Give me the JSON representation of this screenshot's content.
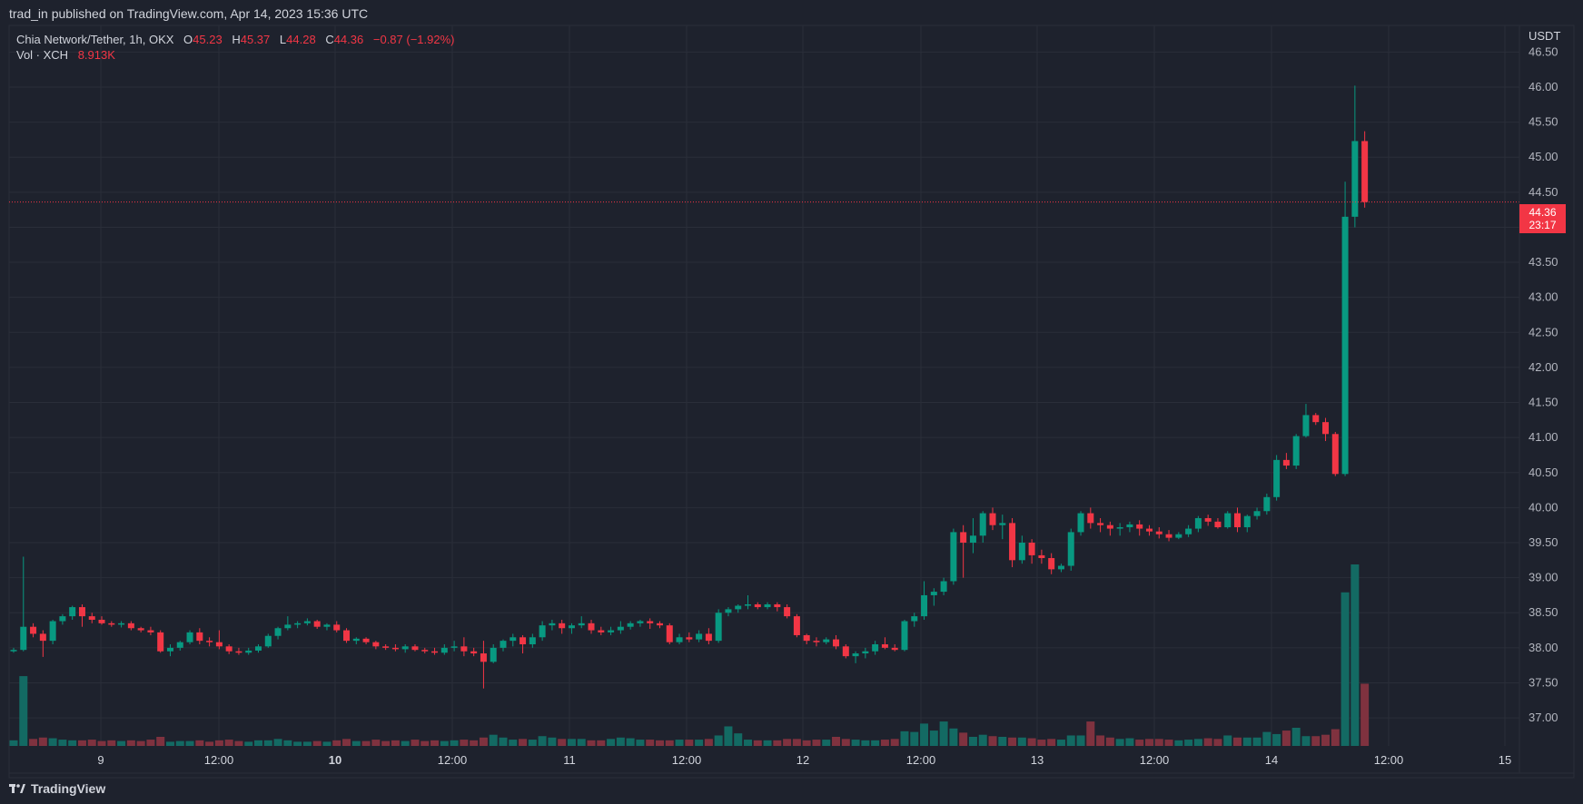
{
  "header": {
    "published_text": "trad_in published on TradingView.com, Apr 14, 2023 15:36 UTC"
  },
  "legend": {
    "symbol": "Chia Network/Tether, 1h, OKX",
    "open_label": "O",
    "open_value": "45.23",
    "high_label": "H",
    "high_value": "45.37",
    "low_label": "L",
    "low_value": "44.28",
    "close_label": "C",
    "close_value": "44.36",
    "change": "−0.87 (−1.92%)",
    "volume_label": "Vol · XCH",
    "volume_value": "8.913K"
  },
  "price_tag": {
    "price": "44.36",
    "countdown": "23:17"
  },
  "footer": {
    "logo_text": "TradingView"
  },
  "colors": {
    "background": "#1e222d",
    "grid": "#2a2e39",
    "up": "#089981",
    "down": "#f23645",
    "up_volume": "#136a63",
    "down_volume": "#7f323f"
  },
  "chart_data": {
    "type": "candlestick",
    "currency": "USDT",
    "y_ticks": [
      "46.50",
      "46.00",
      "45.50",
      "45.00",
      "44.50",
      "44.00",
      "43.50",
      "43.00",
      "42.50",
      "42.00",
      "41.50",
      "41.00",
      "40.50",
      "40.00",
      "39.50",
      "39.00",
      "38.50",
      "38.00",
      "37.50",
      "37.00"
    ],
    "ylim": [
      36.6,
      46.88
    ],
    "x_labels": [
      {
        "label": "9",
        "bold": false
      },
      {
        "label": "12:00",
        "bold": false
      },
      {
        "label": "10",
        "bold": true
      },
      {
        "label": "12:00",
        "bold": false
      },
      {
        "label": "11",
        "bold": false
      },
      {
        "label": "12:00",
        "bold": false
      },
      {
        "label": "12",
        "bold": false
      },
      {
        "label": "12:00",
        "bold": false
      },
      {
        "label": "13",
        "bold": false
      },
      {
        "label": "12:00",
        "bold": false
      },
      {
        "label": "14",
        "bold": false
      },
      {
        "label": "12:00",
        "bold": false
      },
      {
        "label": "15",
        "bold": false
      }
    ],
    "candles": [
      [
        37.95,
        38.0,
        37.93,
        37.97,
        0.8
      ],
      [
        37.97,
        39.3,
        37.95,
        38.3,
        10.0
      ],
      [
        38.3,
        38.35,
        38.15,
        38.2,
        1.0
      ],
      [
        38.2,
        38.25,
        37.87,
        38.1,
        1.2
      ],
      [
        38.1,
        38.4,
        38.05,
        38.38,
        1.1
      ],
      [
        38.38,
        38.48,
        38.33,
        38.45,
        0.9
      ],
      [
        38.45,
        38.6,
        38.4,
        38.58,
        0.8
      ],
      [
        38.58,
        38.62,
        38.3,
        38.45,
        0.8
      ],
      [
        38.45,
        38.5,
        38.35,
        38.4,
        0.9
      ],
      [
        38.4,
        38.45,
        38.33,
        38.35,
        0.7
      ],
      [
        38.35,
        38.38,
        38.3,
        38.33,
        0.8
      ],
      [
        38.33,
        38.38,
        38.29,
        38.35,
        0.7
      ],
      [
        38.35,
        38.38,
        38.25,
        38.28,
        0.8
      ],
      [
        38.28,
        38.3,
        38.22,
        38.25,
        0.7
      ],
      [
        38.25,
        38.3,
        38.18,
        38.22,
        0.9
      ],
      [
        38.22,
        38.25,
        37.93,
        37.95,
        1.3
      ],
      [
        37.95,
        38.05,
        37.88,
        38.0,
        0.6
      ],
      [
        38.0,
        38.1,
        37.96,
        38.08,
        0.7
      ],
      [
        38.08,
        38.25,
        38.05,
        38.22,
        0.7
      ],
      [
        38.22,
        38.28,
        38.05,
        38.1,
        0.8
      ],
      [
        38.1,
        38.15,
        38.02,
        38.08,
        0.6
      ],
      [
        38.08,
        38.25,
        37.98,
        38.02,
        0.8
      ],
      [
        38.02,
        38.05,
        37.91,
        37.95,
        0.9
      ],
      [
        37.95,
        38.0,
        37.9,
        37.93,
        0.7
      ],
      [
        37.93,
        38.0,
        37.9,
        37.96,
        0.6
      ],
      [
        37.96,
        38.05,
        37.93,
        38.02,
        0.8
      ],
      [
        38.02,
        38.2,
        38.0,
        38.17,
        0.8
      ],
      [
        38.17,
        38.3,
        38.12,
        38.28,
        1.0
      ],
      [
        38.28,
        38.45,
        38.25,
        38.33,
        0.8
      ],
      [
        38.33,
        38.38,
        38.28,
        38.35,
        0.6
      ],
      [
        38.35,
        38.42,
        38.32,
        38.38,
        0.6
      ],
      [
        38.38,
        38.4,
        38.27,
        38.3,
        0.7
      ],
      [
        38.3,
        38.35,
        38.25,
        38.33,
        0.6
      ],
      [
        38.33,
        38.38,
        38.22,
        38.25,
        0.8
      ],
      [
        38.25,
        38.28,
        38.07,
        38.1,
        1.0
      ],
      [
        38.1,
        38.15,
        38.05,
        38.13,
        0.7
      ],
      [
        38.13,
        38.15,
        38.05,
        38.08,
        0.7
      ],
      [
        38.08,
        38.1,
        37.98,
        38.02,
        0.9
      ],
      [
        38.02,
        38.05,
        37.97,
        38.0,
        0.7
      ],
      [
        38.0,
        38.05,
        37.95,
        37.98,
        0.8
      ],
      [
        37.98,
        38.05,
        37.93,
        38.02,
        0.7
      ],
      [
        38.02,
        38.05,
        37.95,
        37.97,
        0.9
      ],
      [
        37.97,
        38.0,
        37.92,
        37.95,
        0.7
      ],
      [
        37.95,
        38.0,
        37.9,
        37.93,
        0.8
      ],
      [
        37.93,
        38.05,
        37.9,
        38.0,
        0.7
      ],
      [
        38.0,
        38.1,
        37.95,
        38.02,
        0.8
      ],
      [
        38.02,
        38.15,
        37.88,
        37.95,
        0.9
      ],
      [
        37.95,
        38.0,
        37.88,
        37.92,
        0.8
      ],
      [
        37.92,
        38.1,
        37.42,
        37.8,
        1.2
      ],
      [
        37.8,
        38.05,
        37.78,
        38.0,
        1.6
      ],
      [
        38.0,
        38.12,
        37.95,
        38.1,
        1.2
      ],
      [
        38.1,
        38.2,
        38.02,
        38.15,
        0.9
      ],
      [
        38.15,
        38.18,
        37.92,
        38.05,
        1.0
      ],
      [
        38.05,
        38.2,
        38.0,
        38.15,
        0.9
      ],
      [
        38.15,
        38.38,
        38.1,
        38.32,
        1.4
      ],
      [
        38.32,
        38.4,
        38.25,
        38.35,
        1.2
      ],
      [
        38.35,
        38.4,
        38.2,
        38.28,
        1.0
      ],
      [
        38.28,
        38.35,
        38.2,
        38.32,
        1.0
      ],
      [
        38.32,
        38.45,
        38.28,
        38.35,
        1.0
      ],
      [
        38.35,
        38.4,
        38.2,
        38.25,
        0.8
      ],
      [
        38.25,
        38.3,
        38.18,
        38.22,
        0.8
      ],
      [
        38.22,
        38.3,
        38.18,
        38.25,
        1.0
      ],
      [
        38.25,
        38.38,
        38.2,
        38.3,
        1.2
      ],
      [
        38.3,
        38.38,
        38.26,
        38.35,
        1.1
      ],
      [
        38.35,
        38.4,
        38.3,
        38.38,
        0.9
      ],
      [
        38.38,
        38.42,
        38.27,
        38.35,
        0.9
      ],
      [
        38.35,
        38.38,
        38.28,
        38.32,
        0.8
      ],
      [
        38.32,
        38.35,
        38.05,
        38.08,
        0.8
      ],
      [
        38.08,
        38.2,
        38.05,
        38.15,
        0.9
      ],
      [
        38.15,
        38.22,
        38.08,
        38.12,
        0.9
      ],
      [
        38.12,
        38.25,
        38.08,
        38.2,
        0.9
      ],
      [
        38.2,
        38.28,
        38.05,
        38.1,
        1.0
      ],
      [
        38.1,
        38.55,
        38.07,
        38.5,
        1.5
      ],
      [
        38.5,
        38.58,
        38.45,
        38.55,
        2.8
      ],
      [
        38.55,
        38.62,
        38.5,
        38.6,
        1.8
      ],
      [
        38.6,
        38.75,
        38.55,
        38.62,
        0.9
      ],
      [
        38.62,
        38.65,
        38.55,
        38.58,
        0.8
      ],
      [
        38.58,
        38.65,
        38.55,
        38.62,
        0.8
      ],
      [
        38.62,
        38.65,
        38.52,
        38.58,
        0.8
      ],
      [
        38.58,
        38.62,
        38.42,
        38.45,
        1.0
      ],
      [
        38.45,
        38.48,
        38.15,
        38.18,
        1.0
      ],
      [
        38.18,
        38.2,
        38.05,
        38.1,
        0.8
      ],
      [
        38.1,
        38.15,
        38.02,
        38.08,
        0.9
      ],
      [
        38.08,
        38.15,
        38.05,
        38.12,
        0.9
      ],
      [
        38.12,
        38.18,
        37.98,
        38.02,
        1.3
      ],
      [
        38.02,
        38.05,
        37.85,
        37.88,
        1.0
      ],
      [
        37.88,
        37.95,
        37.78,
        37.92,
        0.9
      ],
      [
        37.92,
        38.0,
        37.85,
        37.95,
        0.8
      ],
      [
        37.95,
        38.1,
        37.9,
        38.05,
        0.8
      ],
      [
        38.05,
        38.15,
        37.98,
        38.0,
        0.9
      ],
      [
        38.0,
        38.05,
        37.95,
        37.97,
        1.0
      ],
      [
        37.97,
        38.4,
        37.95,
        38.38,
        2.1
      ],
      [
        38.38,
        38.5,
        38.3,
        38.45,
        2.0
      ],
      [
        38.45,
        38.95,
        38.4,
        38.75,
        3.2
      ],
      [
        38.75,
        38.85,
        38.6,
        38.8,
        2.2
      ],
      [
        38.8,
        39.0,
        38.75,
        38.95,
        3.5
      ],
      [
        38.95,
        39.7,
        38.9,
        39.65,
        2.5
      ],
      [
        39.65,
        39.75,
        39.0,
        39.5,
        1.9
      ],
      [
        39.5,
        39.85,
        39.35,
        39.6,
        1.3
      ],
      [
        39.6,
        39.95,
        39.5,
        39.92,
        1.6
      ],
      [
        39.92,
        40.0,
        39.68,
        39.75,
        1.4
      ],
      [
        39.75,
        39.9,
        39.55,
        39.78,
        1.3
      ],
      [
        39.78,
        39.85,
        39.15,
        39.25,
        1.2
      ],
      [
        39.25,
        39.6,
        39.2,
        39.5,
        1.2
      ],
      [
        39.5,
        39.55,
        39.2,
        39.32,
        1.1
      ],
      [
        39.32,
        39.4,
        39.2,
        39.28,
        0.9
      ],
      [
        39.28,
        39.35,
        39.05,
        39.12,
        1.0
      ],
      [
        39.12,
        39.2,
        39.08,
        39.17,
        0.9
      ],
      [
        39.17,
        39.7,
        39.1,
        39.65,
        1.5
      ],
      [
        39.65,
        39.95,
        39.6,
        39.92,
        1.5
      ],
      [
        39.92,
        40.0,
        39.7,
        39.78,
        3.5
      ],
      [
        39.78,
        39.85,
        39.65,
        39.75,
        1.5
      ],
      [
        39.75,
        39.8,
        39.6,
        39.7,
        1.2
      ],
      [
        39.7,
        39.78,
        39.6,
        39.72,
        1.0
      ],
      [
        39.72,
        39.8,
        39.65,
        39.76,
        1.1
      ],
      [
        39.76,
        39.82,
        39.6,
        39.7,
        0.9
      ],
      [
        39.7,
        39.75,
        39.6,
        39.66,
        1.0
      ],
      [
        39.66,
        39.72,
        39.56,
        39.62,
        1.0
      ],
      [
        39.62,
        39.68,
        39.52,
        39.57,
        0.9
      ],
      [
        39.57,
        39.65,
        39.55,
        39.62,
        0.8
      ],
      [
        39.62,
        39.75,
        39.58,
        39.7,
        0.9
      ],
      [
        39.7,
        39.88,
        39.65,
        39.85,
        1.0
      ],
      [
        39.85,
        39.9,
        39.74,
        39.8,
        1.1
      ],
      [
        39.8,
        39.85,
        39.7,
        39.72,
        1.0
      ],
      [
        39.72,
        39.95,
        39.7,
        39.92,
        1.5
      ],
      [
        39.92,
        40.0,
        39.65,
        39.72,
        1.2
      ],
      [
        39.72,
        39.9,
        39.65,
        39.88,
        1.2
      ],
      [
        39.88,
        40.0,
        39.83,
        39.95,
        1.2
      ],
      [
        39.95,
        40.2,
        39.9,
        40.15,
        2.0
      ],
      [
        40.15,
        40.75,
        40.1,
        40.68,
        1.7
      ],
      [
        40.68,
        40.78,
        40.55,
        40.6,
        2.2
      ],
      [
        40.6,
        41.05,
        40.55,
        41.02,
        2.6
      ],
      [
        41.02,
        41.48,
        41.0,
        41.32,
        1.4
      ],
      [
        41.32,
        41.35,
        41.18,
        41.22,
        1.4
      ],
      [
        41.22,
        41.28,
        40.95,
        41.05,
        1.6
      ],
      [
        41.05,
        41.08,
        40.45,
        40.48,
        2.4
      ],
      [
        40.48,
        44.65,
        40.45,
        44.15,
        22.0
      ],
      [
        44.15,
        46.02,
        44.0,
        45.23,
        26.0
      ],
      [
        45.23,
        45.37,
        44.28,
        44.36,
        8.913
      ]
    ]
  }
}
